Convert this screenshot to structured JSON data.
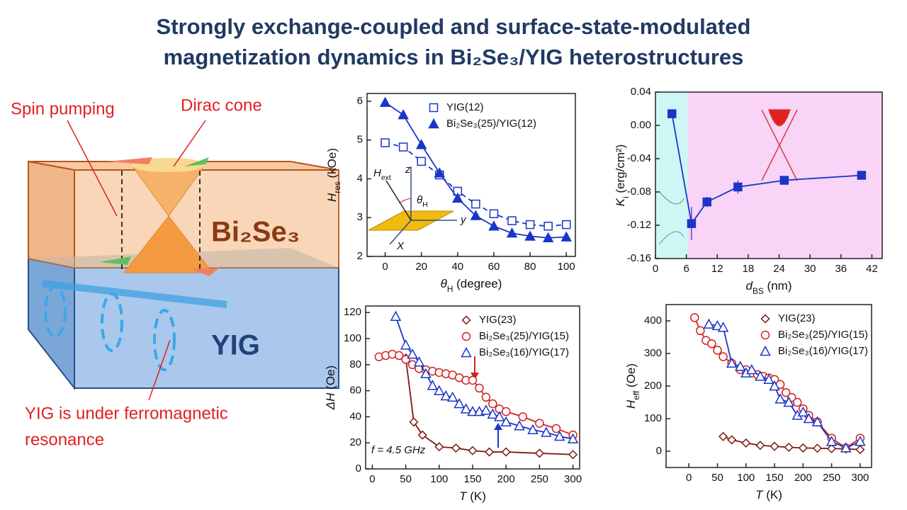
{
  "slide": {
    "title_lines": [
      "Strongly exchange-coupled and surface-state-modulated",
      "magnetization dynamics in Bi₂Se₃/YIG heterostructures"
    ],
    "diagram": {
      "spin_pumping": "Spin pumping",
      "dirac_cone": "Dirac cone",
      "top_layer": "Bi₂Se₃",
      "bottom_layer": "YIG",
      "note_lines": [
        "YIG is under ferromagnetic",
        "resonance"
      ]
    }
  },
  "chart_data": [
    {
      "type": "scatter",
      "x_label": {
        "text": "θ",
        "sub": "H",
        "unit": " (degree)"
      },
      "y_label": {
        "text": "H",
        "sub": "res",
        "unit": " (kOe)"
      },
      "xlim": [
        -10,
        105
      ],
      "xticks": [
        0,
        20,
        40,
        60,
        80,
        100
      ],
      "ylim": [
        2,
        6.2
      ],
      "yticks": [
        2,
        3,
        4,
        5,
        6
      ],
      "legend": "upper right",
      "annotations": [
        {
          "text": "H",
          "sub": "ext"
        },
        {
          "text": "z"
        },
        {
          "text": "y"
        },
        {
          "text": "X"
        },
        {
          "text": "θ",
          "sub": "H"
        }
      ],
      "series": [
        {
          "name": "YIG(12)",
          "color": "#1a35c9",
          "marker": "square-open",
          "line": "dashed",
          "x": [
            0,
            10,
            20,
            30,
            40,
            50,
            60,
            70,
            80,
            90,
            100
          ],
          "values": [
            4.93,
            4.82,
            4.45,
            4.1,
            3.68,
            3.35,
            3.1,
            2.92,
            2.82,
            2.78,
            2.82
          ]
        },
        {
          "name": "Bi₂Se₃(25)/YIG(12)",
          "color": "#1a35c9",
          "marker": "triangle",
          "line": "solid",
          "x": [
            0,
            10,
            20,
            30,
            40,
            50,
            60,
            70,
            80,
            90,
            100
          ],
          "values": [
            5.97,
            5.65,
            4.88,
            4.15,
            3.5,
            3.05,
            2.78,
            2.6,
            2.52,
            2.48,
            2.5
          ]
        }
      ]
    },
    {
      "type": "scatter",
      "x_label": {
        "text": "d",
        "sub": "BS",
        "unit": " (nm)"
      },
      "y_label": {
        "text": "K",
        "sub": "i",
        "unit": " (erg/cm²)"
      },
      "xlim": [
        0,
        44
      ],
      "xticks": [
        0,
        6,
        12,
        18,
        24,
        30,
        36,
        42
      ],
      "ylim": [
        -0.16,
        0.04
      ],
      "yticks": [
        -0.16,
        -0.12,
        -0.08,
        -0.04,
        {
          "value": 0,
          "label": "0.00"
        },
        0.04
      ],
      "series": [
        {
          "color": "#1a35c9",
          "marker": "square",
          "line": "solid",
          "x": [
            3.2,
            7,
            10,
            16,
            25,
            40
          ],
          "values": [
            0.014,
            -0.118,
            -0.092,
            -0.074,
            -0.066,
            -0.06
          ],
          "errors": [
            null,
            0.02,
            0.006,
            0.008,
            null,
            null
          ]
        }
      ]
    },
    {
      "type": "scatter",
      "x_label": {
        "text": "T",
        "unit": " (K)"
      },
      "y_label": {
        "text": "ΔH",
        "unit": " (Oe)"
      },
      "xlim": [
        -10,
        310
      ],
      "xticks": [
        0,
        50,
        100,
        150,
        200,
        250,
        300
      ],
      "ylim": [
        0,
        125
      ],
      "yticks": [
        0,
        20,
        40,
        60,
        80,
        100,
        120
      ],
      "legend": "upper right",
      "annotations": [
        {
          "text": "f = 4.5 GHz"
        }
      ],
      "series": [
        {
          "name": "YIG(23)",
          "color": "#7a1a12",
          "marker": "diamond-open",
          "line": "solid",
          "x": [
            50,
            62,
            75,
            100,
            125,
            150,
            175,
            200,
            250,
            300
          ],
          "values": [
            85,
            36,
            26,
            17,
            16,
            14,
            13,
            13,
            12,
            11
          ]
        },
        {
          "name": "Bi₂Se₃(25)/YIG(15)",
          "color": "#d42020",
          "marker": "circle-open",
          "line": "solid",
          "x": [
            10,
            20,
            30,
            40,
            50,
            60,
            70,
            80,
            90,
            100,
            110,
            120,
            130,
            140,
            150,
            160,
            170,
            180,
            190,
            200,
            225,
            250,
            275,
            300
          ],
          "values": [
            86,
            87,
            88,
            87,
            84,
            80,
            77,
            76,
            75,
            74,
            73,
            72,
            70,
            68,
            68,
            62,
            55,
            50,
            46,
            44,
            40,
            35,
            31,
            26
          ]
        },
        {
          "name": "Bi₂Se₃(16)/YIG(17)",
          "color": "#1a35c9",
          "marker": "triangle-open",
          "line": "solid",
          "x": [
            35,
            50,
            60,
            70,
            80,
            90,
            100,
            110,
            120,
            130,
            140,
            150,
            160,
            170,
            180,
            190,
            200,
            220,
            240,
            260,
            280,
            300
          ],
          "values": [
            117,
            95,
            88,
            82,
            73,
            64,
            60,
            56,
            55,
            50,
            46,
            44,
            44,
            45,
            42,
            40,
            36,
            33,
            30,
            28,
            25,
            23
          ]
        }
      ]
    },
    {
      "type": "scatter",
      "x_label": {
        "text": "T",
        "unit": " (K)"
      },
      "y_label": {
        "text": "H",
        "sub": "eff",
        "unit": " (Oe)"
      },
      "xlim": [
        -40,
        320
      ],
      "xticks": [
        0,
        50,
        100,
        150,
        200,
        250,
        300
      ],
      "ylim": [
        -50,
        450
      ],
      "yticks": [
        0,
        100,
        200,
        300,
        400
      ],
      "legend": "upper right",
      "series": [
        {
          "name": "YIG(23)",
          "color": "#7a1a12",
          "marker": "diamond-open",
          "line": "solid",
          "x": [
            60,
            75,
            100,
            125,
            150,
            175,
            200,
            225,
            250,
            275,
            300
          ],
          "values": [
            45,
            35,
            25,
            18,
            15,
            12,
            10,
            9,
            8,
            7,
            5
          ]
        },
        {
          "name": "Bi₂Se₃(25)/YIG(15)",
          "color": "#d42020",
          "marker": "circle-open",
          "line": "solid",
          "x": [
            10,
            20,
            30,
            40,
            50,
            60,
            75,
            90,
            100,
            110,
            120,
            130,
            140,
            150,
            160,
            170,
            180,
            190,
            200,
            210,
            225,
            250,
            275,
            300
          ],
          "values": [
            410,
            370,
            340,
            330,
            310,
            290,
            270,
            250,
            250,
            240,
            235,
            230,
            225,
            220,
            205,
            180,
            165,
            150,
            130,
            110,
            90,
            40,
            10,
            40
          ]
        },
        {
          "name": "Bi₂Se₃(16)/YIG(17)",
          "color": "#1a35c9",
          "marker": "triangle-open",
          "line": "solid",
          "x": [
            35,
            50,
            60,
            75,
            90,
            100,
            110,
            125,
            140,
            150,
            160,
            175,
            190,
            200,
            210,
            225,
            250,
            275,
            300
          ],
          "values": [
            390,
            385,
            380,
            270,
            260,
            240,
            250,
            230,
            220,
            200,
            160,
            150,
            110,
            120,
            100,
            90,
            30,
            10,
            30
          ]
        }
      ]
    }
  ]
}
